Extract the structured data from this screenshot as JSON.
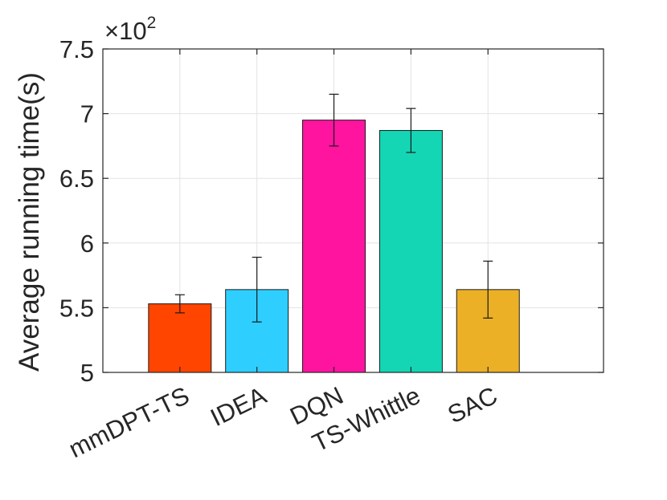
{
  "chart_data": {
    "type": "bar",
    "title": "",
    "xlabel": "",
    "ylabel": "Average running time(s)",
    "y_multiplier_text": "×10",
    "y_multiplier_exponent": "2",
    "ylim": [
      5,
      7.5
    ],
    "yticks": [
      5,
      5.5,
      6,
      6.5,
      7,
      7.5
    ],
    "ytick_labels": [
      "5",
      "5.5",
      "6",
      "6.5",
      "7",
      "7.5"
    ],
    "grid": true,
    "categories": [
      "mmDPT-TS",
      "IDEA",
      "DQN",
      "TS-Whittle",
      "SAC"
    ],
    "values": [
      5.53,
      5.64,
      6.95,
      6.87,
      5.64
    ],
    "error_lower": [
      0.07,
      0.25,
      0.2,
      0.17,
      0.22
    ],
    "error_upper": [
      0.07,
      0.25,
      0.2,
      0.17,
      0.22
    ],
    "colors": [
      "#FF4500",
      "#2ECEFF",
      "#FF14A0",
      "#14D6B4",
      "#EBB026"
    ]
  }
}
